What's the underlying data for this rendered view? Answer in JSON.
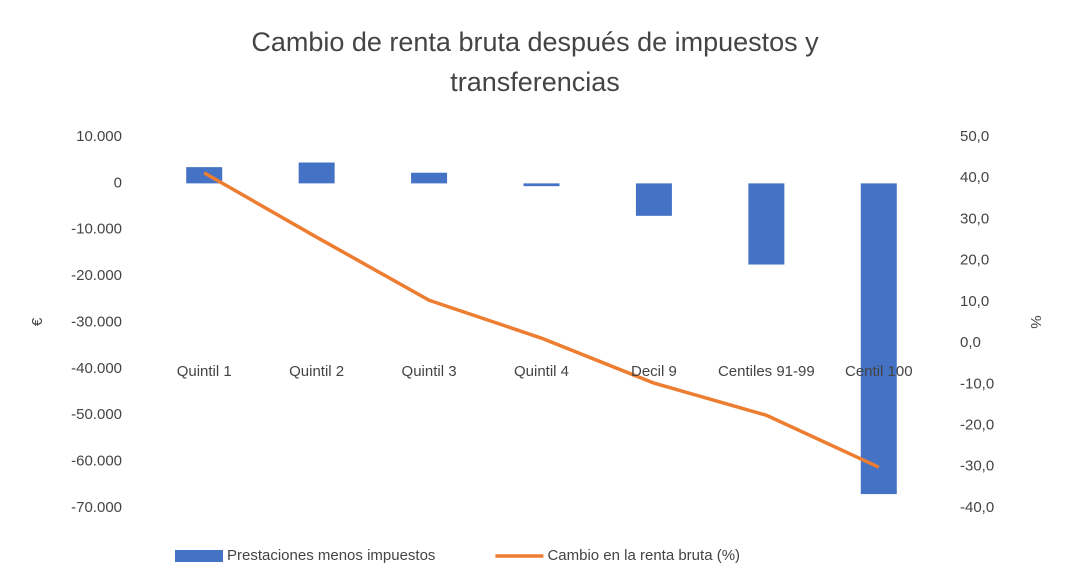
{
  "chart_data": {
    "type": "bar-line",
    "title": "Cambio de renta bruta después de impuestos y transferencias",
    "categories": [
      "Quintil 1",
      "Quintil 2",
      "Quintil 3",
      "Quintil 4",
      "Decil 9",
      "Centiles 91-99",
      "Centil 100"
    ],
    "series": [
      {
        "name": "Prestaciones menos impuestos",
        "type": "bar",
        "color": "#4472c4",
        "values": [
          3500,
          4500,
          2300,
          -600,
          -7000,
          -17500,
          -67000
        ]
      },
      {
        "name": "Cambio en la renta bruta (%)",
        "type": "line",
        "axis": "y2",
        "color": "#ed7d31",
        "values": [
          41.3,
          25.7,
          10.4,
          1.2,
          -9.7,
          -17.5,
          -30.1
        ]
      }
    ],
    "ylabel": "€",
    "y2label": "%",
    "ylim": [
      -70000,
      10000
    ],
    "yticks": [
      {
        "value": -70000,
        "label": "-70.000"
      },
      {
        "value": -60000,
        "label": "-60.000"
      },
      {
        "value": -50000,
        "label": "-50.000"
      },
      {
        "value": -40000,
        "label": "-40.000"
      },
      {
        "value": -30000,
        "label": "-30.000"
      },
      {
        "value": -20000,
        "label": "-20.000"
      },
      {
        "value": -10000,
        "label": "-10.000"
      },
      0,
      {
        "value": 10000,
        "label": "10.000"
      }
    ],
    "y2lim": [
      -40,
      50
    ],
    "y2ticks": [
      {
        "value": -40,
        "label": "-40,0"
      },
      {
        "value": -30,
        "label": "-30,0"
      },
      {
        "value": -20,
        "label": "-20,0"
      },
      {
        "value": -10,
        "label": "-10,0"
      },
      {
        "value": 0,
        "label": "0,0"
      },
      {
        "value": 10,
        "label": "10,0"
      },
      {
        "value": 20,
        "label": "20,0"
      },
      {
        "value": 30,
        "label": "30,0"
      },
      {
        "value": 40,
        "label": "40,0"
      },
      {
        "value": 50,
        "label": "50,0"
      }
    ],
    "grid": false,
    "legend": "bottom"
  }
}
